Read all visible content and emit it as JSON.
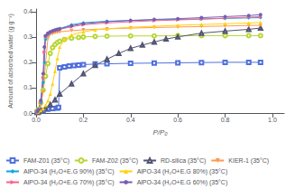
{
  "chart_data": {
    "type": "line",
    "xlabel": "P/P₀",
    "ylabel": "Amount of absorbed water (g g⁻¹)",
    "xlim": [
      0.0,
      1.05
    ],
    "ylim": [
      0.0,
      0.41
    ],
    "xticks": [
      {
        "value": 0,
        "label": "0.0"
      },
      0.2,
      0.4,
      0.6,
      0.8,
      {
        "value": 1,
        "label": "1.0"
      }
    ],
    "yticks": [
      {
        "value": 0,
        "label": "0.0"
      },
      0.1,
      0.2,
      0.3,
      0.4
    ],
    "grid": false,
    "legend": "bottom",
    "series": [
      {
        "name": "FAM-Z01 (35°C)",
        "marker": "open_square",
        "x": [
          0.005,
          0.01,
          0.02,
          0.03,
          0.05,
          0.07,
          0.09,
          0.095,
          0.1,
          0.12,
          0.14,
          0.16,
          0.18,
          0.2,
          0.25,
          0.3,
          0.4,
          0.5,
          0.6,
          0.7,
          0.8,
          0.9,
          0.95
        ],
        "values": [
          0.003,
          0.005,
          0.007,
          0.01,
          0.015,
          0.018,
          0.02,
          0.022,
          0.178,
          0.182,
          0.185,
          0.187,
          0.189,
          0.191,
          0.193,
          0.194,
          0.196,
          0.197,
          0.198,
          0.199,
          0.2,
          0.2,
          0.2
        ]
      },
      {
        "name": "FAM-Z02 (35°C)",
        "marker": "open_circle",
        "x": [
          0.005,
          0.01,
          0.02,
          0.03,
          0.04,
          0.05,
          0.06,
          0.07,
          0.08,
          0.09,
          0.1,
          0.12,
          0.15,
          0.18,
          0.2,
          0.25,
          0.3,
          0.4,
          0.5,
          0.6,
          0.7,
          0.8,
          0.9,
          0.95
        ],
        "values": [
          0.008,
          0.015,
          0.04,
          0.09,
          0.145,
          0.195,
          0.235,
          0.258,
          0.27,
          0.278,
          0.283,
          0.29,
          0.295,
          0.298,
          0.3,
          0.302,
          0.303,
          0.304,
          0.304,
          0.305,
          0.305,
          0.305,
          0.305,
          0.305
        ]
      },
      {
        "name": "RD-silica (35°C)",
        "marker": "open_triangle",
        "x": [
          0.005,
          0.01,
          0.02,
          0.04,
          0.06,
          0.08,
          0.1,
          0.15,
          0.2,
          0.25,
          0.3,
          0.35,
          0.4,
          0.45,
          0.5,
          0.55,
          0.6,
          0.7,
          0.8,
          0.9,
          0.95
        ],
        "values": [
          0.003,
          0.005,
          0.01,
          0.02,
          0.033,
          0.052,
          0.075,
          0.115,
          0.155,
          0.188,
          0.212,
          0.235,
          0.255,
          0.268,
          0.28,
          0.292,
          0.3,
          0.315,
          0.323,
          0.33,
          0.335
        ]
      },
      {
        "name": "KIER-1 (35°C)",
        "marker": "triangle_down",
        "x": [
          0.005,
          0.01,
          0.02,
          0.03,
          0.04,
          0.05,
          0.055,
          0.06,
          0.07,
          0.08,
          0.09,
          0.1,
          0.15,
          0.2,
          0.3,
          0.4,
          0.5,
          0.6,
          0.7,
          0.8,
          0.9,
          0.95
        ],
        "values": [
          0.005,
          0.01,
          0.03,
          0.085,
          0.195,
          0.295,
          0.305,
          0.31,
          0.313,
          0.316,
          0.318,
          0.32,
          0.325,
          0.328,
          0.332,
          0.335,
          0.337,
          0.339,
          0.341,
          0.343,
          0.345,
          0.346
        ]
      },
      {
        "name": "AlPO-34 (H₂O+E.G 90%) (35°C)",
        "marker": "diamond",
        "x": [
          0.005,
          0.01,
          0.02,
          0.03,
          0.035,
          0.04,
          0.05,
          0.06,
          0.07,
          0.08,
          0.09,
          0.1,
          0.15,
          0.2,
          0.3,
          0.4,
          0.5,
          0.6,
          0.7,
          0.8,
          0.9,
          0.95
        ],
        "values": [
          0.005,
          0.012,
          0.04,
          0.12,
          0.2,
          0.29,
          0.31,
          0.318,
          0.323,
          0.327,
          0.33,
          0.333,
          0.348,
          0.356,
          0.362,
          0.365,
          0.367,
          0.369,
          0.371,
          0.373,
          0.375,
          0.376
        ]
      },
      {
        "name": "AlPO-34 (H₂O+E.G 80%) (35°C)",
        "marker": "triangle",
        "x": [
          0.005,
          0.01,
          0.02,
          0.03,
          0.04,
          0.05,
          0.06,
          0.07,
          0.08,
          0.09,
          0.1,
          0.12,
          0.15,
          0.2,
          0.25,
          0.3,
          0.4,
          0.5,
          0.6,
          0.7,
          0.8,
          0.9,
          0.95
        ],
        "values": [
          0.003,
          0.005,
          0.01,
          0.018,
          0.03,
          0.048,
          0.075,
          0.115,
          0.165,
          0.215,
          0.26,
          0.29,
          0.308,
          0.32,
          0.328,
          0.332,
          0.338,
          0.342,
          0.346,
          0.349,
          0.352,
          0.355,
          0.357
        ]
      },
      {
        "name": "AlPO-34 (H₂O+E.G 70%) (35°C)",
        "marker": "triangle_right",
        "x": [
          0.005,
          0.01,
          0.02,
          0.03,
          0.035,
          0.04,
          0.05,
          0.06,
          0.07,
          0.08,
          0.09,
          0.1,
          0.15,
          0.2,
          0.3,
          0.4,
          0.5,
          0.6,
          0.7,
          0.8,
          0.9,
          0.95
        ],
        "values": [
          0.005,
          0.012,
          0.045,
          0.14,
          0.24,
          0.3,
          0.312,
          0.318,
          0.322,
          0.325,
          0.328,
          0.33,
          0.34,
          0.348,
          0.355,
          0.36,
          0.364,
          0.367,
          0.37,
          0.374,
          0.378,
          0.38
        ]
      },
      {
        "name": "AlPO-34 (H₂O+E.G 60%) (35°C)",
        "marker": "circle",
        "x": [
          0.005,
          0.01,
          0.02,
          0.03,
          0.035,
          0.04,
          0.05,
          0.06,
          0.07,
          0.08,
          0.09,
          0.1,
          0.15,
          0.2,
          0.3,
          0.4,
          0.5,
          0.6,
          0.7,
          0.8,
          0.9,
          0.95
        ],
        "values": [
          0.005,
          0.013,
          0.05,
          0.155,
          0.26,
          0.305,
          0.315,
          0.32,
          0.324,
          0.327,
          0.33,
          0.332,
          0.344,
          0.352,
          0.36,
          0.365,
          0.369,
          0.372,
          0.376,
          0.38,
          0.384,
          0.388
        ]
      }
    ]
  }
}
